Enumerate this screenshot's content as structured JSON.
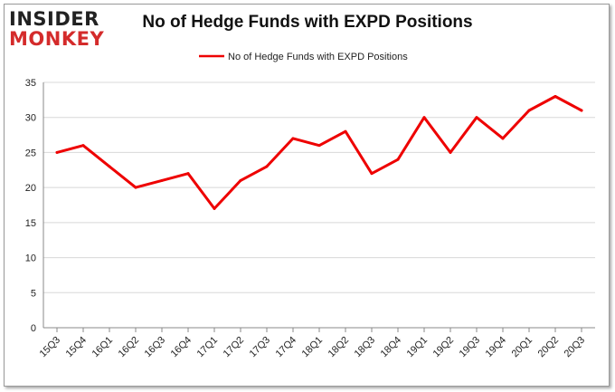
{
  "logo": {
    "line1": "INSIDER",
    "line2": "MONKEY"
  },
  "colors": {
    "series": "#ee0000",
    "grid": "#d8d8d8",
    "axis": "#888888"
  },
  "chart_data": {
    "type": "line",
    "title": "No of Hedge Funds with EXPD Positions",
    "legend": "top-center",
    "grid": true,
    "ylim": [
      0,
      35
    ],
    "yticks": [
      0,
      5,
      10,
      15,
      20,
      25,
      30,
      35
    ],
    "categories": [
      "15Q3",
      "15Q4",
      "16Q1",
      "16Q2",
      "16Q3",
      "16Q4",
      "17Q1",
      "17Q2",
      "17Q3",
      "17Q4",
      "18Q1",
      "18Q2",
      "18Q3",
      "18Q4",
      "19Q1",
      "19Q2",
      "19Q3",
      "19Q4",
      "20Q1",
      "20Q2",
      "20Q3"
    ],
    "series": [
      {
        "name": "No of Hedge Funds with EXPD Positions",
        "values": [
          25,
          26,
          23,
          20,
          21,
          22,
          17,
          21,
          23,
          27,
          26,
          28,
          22,
          24,
          30,
          25,
          30,
          27,
          31,
          33,
          31
        ]
      }
    ]
  }
}
